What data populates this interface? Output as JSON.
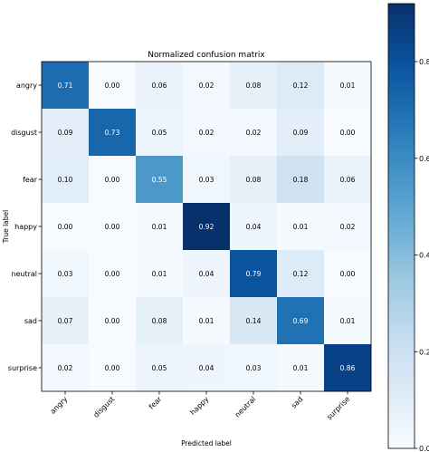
{
  "chart_data": {
    "type": "heatmap",
    "title": "Normalized confusion matrix",
    "xlabel": "Predicted label",
    "ylabel": "True label",
    "labels": [
      "angry",
      "disgust",
      "fear",
      "happy",
      "neutral",
      "sad",
      "surprise"
    ],
    "matrix": [
      [
        0.71,
        0.0,
        0.06,
        0.02,
        0.08,
        0.12,
        0.01
      ],
      [
        0.09,
        0.73,
        0.05,
        0.02,
        0.02,
        0.09,
        0.0
      ],
      [
        0.1,
        0.0,
        0.55,
        0.03,
        0.08,
        0.18,
        0.06
      ],
      [
        0.0,
        0.0,
        0.01,
        0.92,
        0.04,
        0.01,
        0.02
      ],
      [
        0.03,
        0.0,
        0.01,
        0.04,
        0.79,
        0.12,
        0.0
      ],
      [
        0.07,
        0.0,
        0.08,
        0.01,
        0.14,
        0.69,
        0.01
      ],
      [
        0.02,
        0.0,
        0.05,
        0.04,
        0.03,
        0.01,
        0.86
      ]
    ],
    "colormap": "Blues",
    "colorbar": {
      "range": [
        0.0,
        0.92
      ],
      "ticks": [
        "0.0",
        "0.2",
        "0.4",
        "0.6",
        "0.8"
      ]
    },
    "grid": false,
    "legend": "none"
  }
}
